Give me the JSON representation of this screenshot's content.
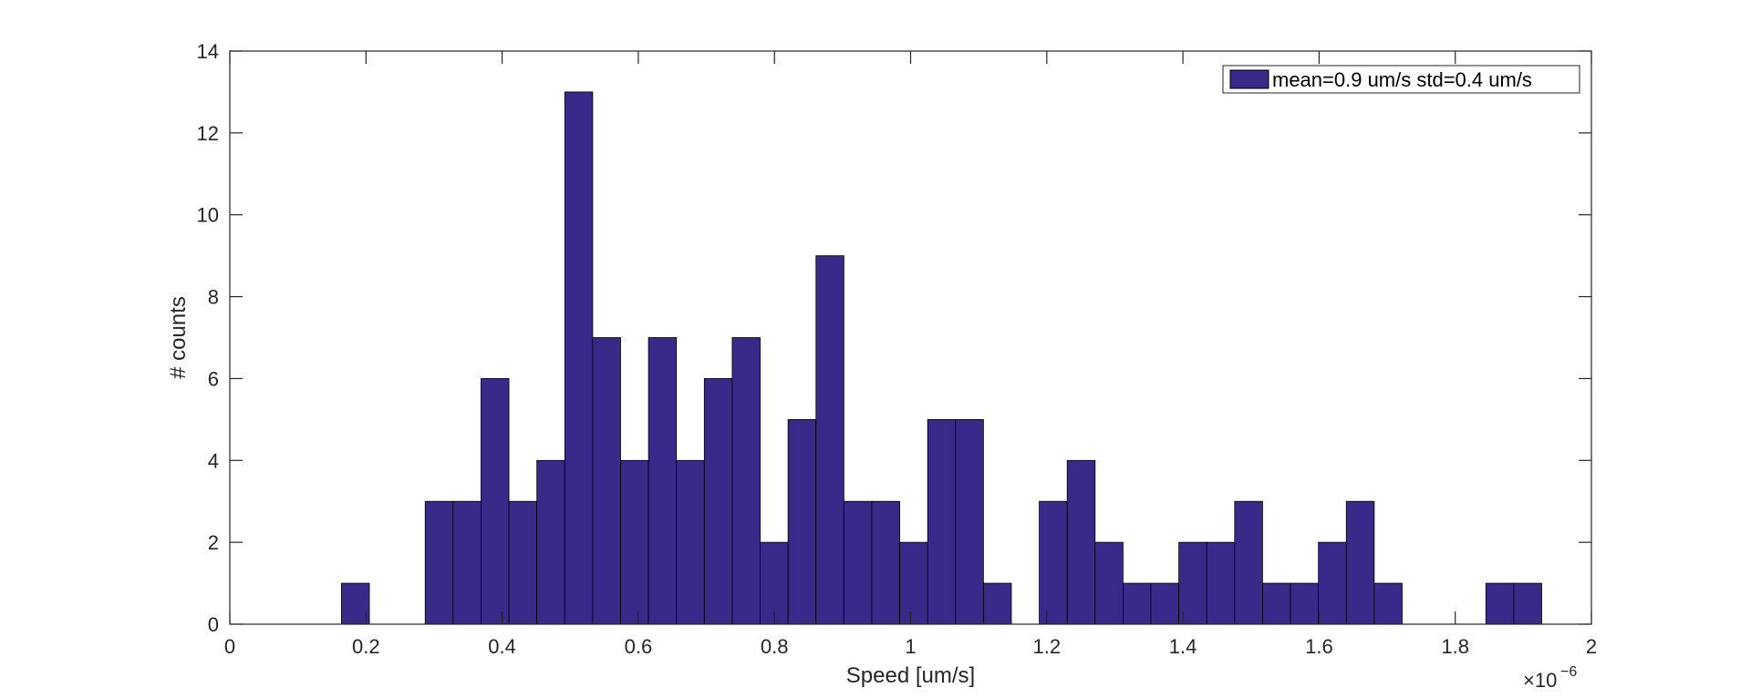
{
  "chart_data": {
    "type": "bar",
    "xlabel": "Speed [um/s]",
    "ylabel": "# counts",
    "xlim": [
      0,
      2
    ],
    "ylim": [
      0,
      14
    ],
    "x_multiplier_label": "×10",
    "x_multiplier_exponent": "−6",
    "xticks": [
      0,
      0.2,
      0.4,
      0.6,
      0.8,
      1,
      1.2,
      1.4,
      1.6,
      1.8,
      2
    ],
    "xtick_labels": [
      "0",
      "0.2",
      "0.4",
      "0.6",
      "0.8",
      "1",
      "1.2",
      "1.4",
      "1.6",
      "1.8",
      "2"
    ],
    "yticks": [
      0,
      2,
      4,
      6,
      8,
      10,
      12,
      14
    ],
    "ytick_labels": [
      "0",
      "2",
      "4",
      "6",
      "8",
      "10",
      "12",
      "14"
    ],
    "bin_start": 0.0,
    "bin_width": 0.041,
    "values": [
      0,
      0,
      0,
      0,
      1,
      0,
      0,
      3,
      3,
      6,
      3,
      4,
      13,
      7,
      4,
      7,
      4,
      6,
      7,
      2,
      5,
      9,
      3,
      3,
      2,
      5,
      5,
      1,
      0,
      3,
      4,
      2,
      1,
      1,
      2,
      2,
      3,
      1,
      1,
      2,
      3,
      1,
      0,
      0,
      0,
      1,
      1
    ],
    "legend": {
      "label": "mean=0.9 um/s std=0.4 um/s",
      "position": "top-right"
    },
    "colors": {
      "bar_fill": "#372a88",
      "bar_edge": "#000000",
      "axis": "#262626"
    },
    "grid": false
  }
}
